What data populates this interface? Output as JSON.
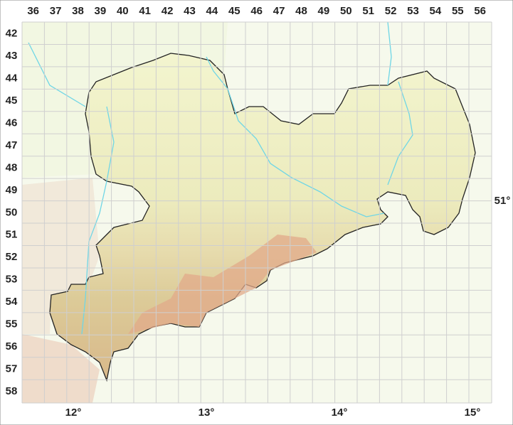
{
  "columns": [
    "36",
    "37",
    "38",
    "39",
    "40",
    "41",
    "42",
    "43",
    "44",
    "45",
    "46",
    "47",
    "48",
    "49",
    "50",
    "51",
    "52",
    "53",
    "54",
    "55",
    "56"
  ],
  "rows": [
    "42",
    "43",
    "44",
    "45",
    "46",
    "47",
    "48",
    "49",
    "50",
    "51",
    "52",
    "53",
    "54",
    "55",
    "56",
    "57",
    "58"
  ],
  "longitudes": [
    "12°",
    "13°",
    "14°",
    "15°"
  ],
  "latitude": "51°"
}
